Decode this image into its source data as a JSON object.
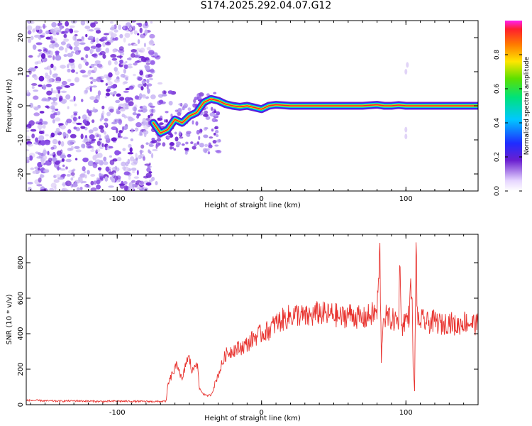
{
  "title": "S174.2025.292.04.07.G12",
  "colors": {
    "snr_line": "#e8332f",
    "frame": "#000000",
    "noise_dark": "#6a1fd0",
    "noise_light": "#d9c9f5"
  },
  "chart_data": [
    {
      "type": "heatmap",
      "xlabel": "Height of straight line (km)",
      "ylabel": "Frequency (Hz)",
      "xlim": [
        -163,
        150
      ],
      "ylim": [
        -25,
        25
      ],
      "xticks": [
        -100,
        0,
        100
      ],
      "yticks": [
        -20,
        -10,
        0,
        10,
        20
      ],
      "colorbar": {
        "label": "Normalized spectral amplitude",
        "range": [
          0,
          1
        ],
        "ticks": [
          "0.0",
          "0.2",
          "0.4",
          "0.6",
          "0.8"
        ]
      },
      "ridge_x": [
        -75,
        -70,
        -65,
        -60,
        -55,
        -50,
        -45,
        -40,
        -35,
        -30,
        -25,
        -20,
        -15,
        -10,
        -5,
        0,
        5,
        10,
        20,
        40,
        60,
        70,
        80,
        85,
        90,
        95,
        100,
        105,
        120,
        150
      ],
      "ridge_y": [
        -5,
        -8,
        -7,
        -4,
        -5,
        -3,
        -2,
        1,
        2,
        1.5,
        0.5,
        0,
        -0.3,
        0,
        -0.5,
        -1,
        0,
        0.3,
        0,
        0,
        0,
        0,
        0.3,
        0,
        0,
        0.2,
        0,
        0,
        0,
        0
      ]
    },
    {
      "type": "line",
      "xlabel": "Height of straight line (km)",
      "ylabel": "SNR (10 * v/v)",
      "xlim": [
        -163,
        150
      ],
      "ylim": [
        0,
        960
      ],
      "xticks": [
        -100,
        0,
        100
      ],
      "yticks": [
        0,
        200,
        400,
        600,
        800
      ],
      "series": [
        {
          "name": "SNR",
          "x": [
            -163,
            -150,
            -140,
            -130,
            -120,
            -110,
            -100,
            -90,
            -80,
            -70,
            -66,
            -65,
            -62,
            -58,
            -55,
            -52,
            -50,
            -48,
            -45,
            -43,
            -40,
            -38,
            -35,
            -30,
            -25,
            -20,
            -15,
            -10,
            -5,
            0,
            5,
            10,
            15,
            20,
            25,
            30,
            35,
            40,
            45,
            50,
            55,
            60,
            65,
            70,
            75,
            80,
            82,
            83,
            84,
            85,
            90,
            95,
            96,
            97,
            98,
            100,
            102,
            104,
            105,
            106,
            107,
            108,
            109,
            110,
            115,
            120,
            125,
            130,
            135,
            140,
            145,
            150
          ],
          "y": [
            25,
            22,
            20,
            22,
            20,
            18,
            20,
            19,
            18,
            18,
            20,
            110,
            170,
            230,
            130,
            250,
            260,
            180,
            260,
            90,
            60,
            50,
            55,
            170,
            280,
            310,
            320,
            340,
            380,
            400,
            420,
            460,
            480,
            500,
            510,
            490,
            500,
            520,
            505,
            510,
            490,
            510,
            500,
            480,
            505,
            520,
            850,
            220,
            480,
            500,
            480,
            470,
            860,
            400,
            470,
            480,
            500,
            700,
            220,
            70,
            900,
            500,
            440,
            480,
            460,
            470,
            450,
            470,
            440,
            470,
            460,
            450
          ]
        }
      ]
    }
  ]
}
